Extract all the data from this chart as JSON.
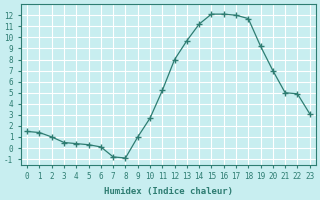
{
  "x": [
    0,
    1,
    2,
    3,
    4,
    5,
    6,
    7,
    8,
    9,
    10,
    11,
    12,
    13,
    14,
    15,
    16,
    17,
    18,
    19,
    20,
    21,
    22,
    23
  ],
  "y": [
    1.5,
    1.4,
    1.0,
    0.5,
    0.4,
    0.3,
    0.1,
    -0.8,
    -0.9,
    1.0,
    2.7,
    5.2,
    8.0,
    9.7,
    11.2,
    12.1,
    12.1,
    12.0,
    11.7,
    9.2,
    7.0,
    5.0,
    4.9,
    3.1
  ],
  "xlim": [
    -0.5,
    23.5
  ],
  "ylim": [
    -1.5,
    13
  ],
  "ylabel_ticks": [
    -1,
    0,
    1,
    2,
    3,
    4,
    5,
    6,
    7,
    8,
    9,
    10,
    11,
    12
  ],
  "xlabel": "Humidex (Indice chaleur)",
  "line_color": "#2e7d72",
  "marker": "+",
  "bg_color": "#c8eef0",
  "grid_color": "#ffffff",
  "font_color": "#2e7d72"
}
